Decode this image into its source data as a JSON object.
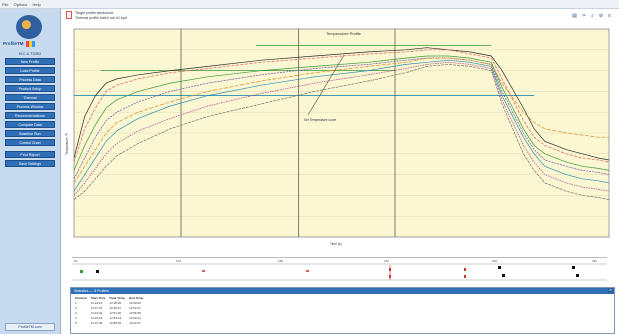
{
  "menu": [
    "File",
    "Options",
    "Help"
  ],
  "sidebar": {
    "brand": "ProfileTM",
    "section_label": "KIC & TDRD",
    "buttons": [
      "New Profile",
      "Load Profile",
      "Process Data",
      "Product Setup",
      "Thermal",
      "Process Window",
      "Recommendations",
      "Compare Data",
      "Baseline Run",
      "Control Chart",
      "Print Report",
      "Save Settings"
    ],
    "footer": "ProfileTM.com"
  },
  "header": {
    "line1": "Target profile window.kit",
    "line2": "Thermal profile batch run #1.kpd",
    "tools": [
      "▤",
      "✂",
      "⌕",
      "⊘",
      "≡"
    ]
  },
  "chart": {
    "title": "Temperature Profile",
    "annotation": "Set Temperature curve",
    "ylabel": "Temperature °F",
    "xlabel": "Time (s)",
    "line_colors": [
      "#2b2b2b",
      "#e05a5a",
      "#3a9a3a",
      "#6a4fb0",
      "#d88b2a",
      "#2a8fb0",
      "#b03a8f",
      "#707070",
      "#5dbb5d",
      "#c9a0dc"
    ]
  },
  "chart_data": {
    "type": "line",
    "title": "Temperature Profile",
    "xlabel": "Time (s)",
    "ylabel": "Temperature °F",
    "xlim": [
      0,
      100
    ],
    "ylim": [
      0,
      100
    ],
    "x": [
      0,
      2,
      4,
      6,
      8,
      12,
      18,
      25,
      35,
      45,
      55,
      62,
      66,
      70,
      74,
      78,
      80,
      84,
      86,
      88,
      92,
      95,
      98,
      100
    ],
    "series": [
      {
        "values": [
          38,
          58,
          68,
          74,
          76,
          78,
          80,
          82,
          85,
          87,
          89,
          90,
          91,
          90,
          89,
          87,
          80,
          62,
          52,
          46,
          42,
          40,
          38,
          37
        ]
      },
      {
        "values": [
          36,
          52,
          62,
          70,
          73,
          76,
          79,
          81,
          84,
          86,
          88,
          89,
          90,
          90,
          88,
          86,
          76,
          56,
          48,
          44,
          40,
          38,
          37,
          36
        ]
      },
      {
        "values": [
          32,
          44,
          54,
          62,
          66,
          70,
          74,
          77,
          80,
          82,
          84,
          86,
          87,
          87,
          86,
          84,
          72,
          52,
          44,
          40,
          36,
          34,
          33,
          32
        ]
      },
      {
        "values": [
          28,
          38,
          48,
          56,
          60,
          65,
          70,
          74,
          78,
          81,
          83,
          85,
          86,
          86,
          85,
          83,
          70,
          50,
          42,
          37,
          34,
          32,
          31,
          30
        ]
      },
      {
        "values": [
          26,
          34,
          42,
          50,
          55,
          60,
          65,
          70,
          75,
          79,
          82,
          84,
          86,
          86,
          85,
          83,
          74,
          60,
          55,
          52,
          50,
          49,
          48,
          48
        ]
      },
      {
        "values": [
          22,
          30,
          38,
          46,
          51,
          57,
          63,
          68,
          73,
          77,
          80,
          83,
          84,
          85,
          84,
          82,
          68,
          48,
          40,
          34,
          30,
          28,
          27,
          26
        ]
      },
      {
        "values": [
          20,
          26,
          33,
          40,
          45,
          51,
          57,
          63,
          69,
          74,
          78,
          81,
          83,
          84,
          83,
          81,
          66,
          44,
          36,
          30,
          26,
          24,
          23,
          22
        ]
      },
      {
        "values": [
          18,
          22,
          28,
          34,
          39,
          45,
          52,
          58,
          64,
          70,
          75,
          79,
          82,
          83,
          82,
          80,
          64,
          40,
          32,
          26,
          22,
          20,
          19,
          18
        ]
      }
    ],
    "target_lines": [
      {
        "y": 92,
        "x_start": 34,
        "x_end": 78
      },
      {
        "y": 80,
        "x_start": 5,
        "x_end": 60
      },
      {
        "y": 68,
        "x_start": 0,
        "x_end": 86
      }
    ],
    "vertical_markers": [
      20,
      42,
      60
    ],
    "grid": true
  },
  "markers_strip": {
    "labels": [
      "60",
      "120",
      "180",
      "240",
      "300",
      "360"
    ]
  },
  "panel": {
    "title": "Statistics — 5 Profiles",
    "columns": [
      "Channel",
      "Start Time",
      "Peak Temp",
      "End Temp"
    ],
    "rows": [
      [
        "1",
        "11:24:10",
        "12:45:06",
        "12:50:09"
      ],
      [
        "2",
        "11:27:47",
        "12:48:11",
        "12:53:41"
      ],
      [
        "3",
        "11:31:02",
        "12:51:30",
        "12:56:58"
      ],
      [
        "4",
        "11:34:18",
        "12:54:44",
        "13:00:12"
      ],
      [
        "5",
        "11:37:39",
        "12:58:02",
        "13:03:27"
      ]
    ]
  }
}
